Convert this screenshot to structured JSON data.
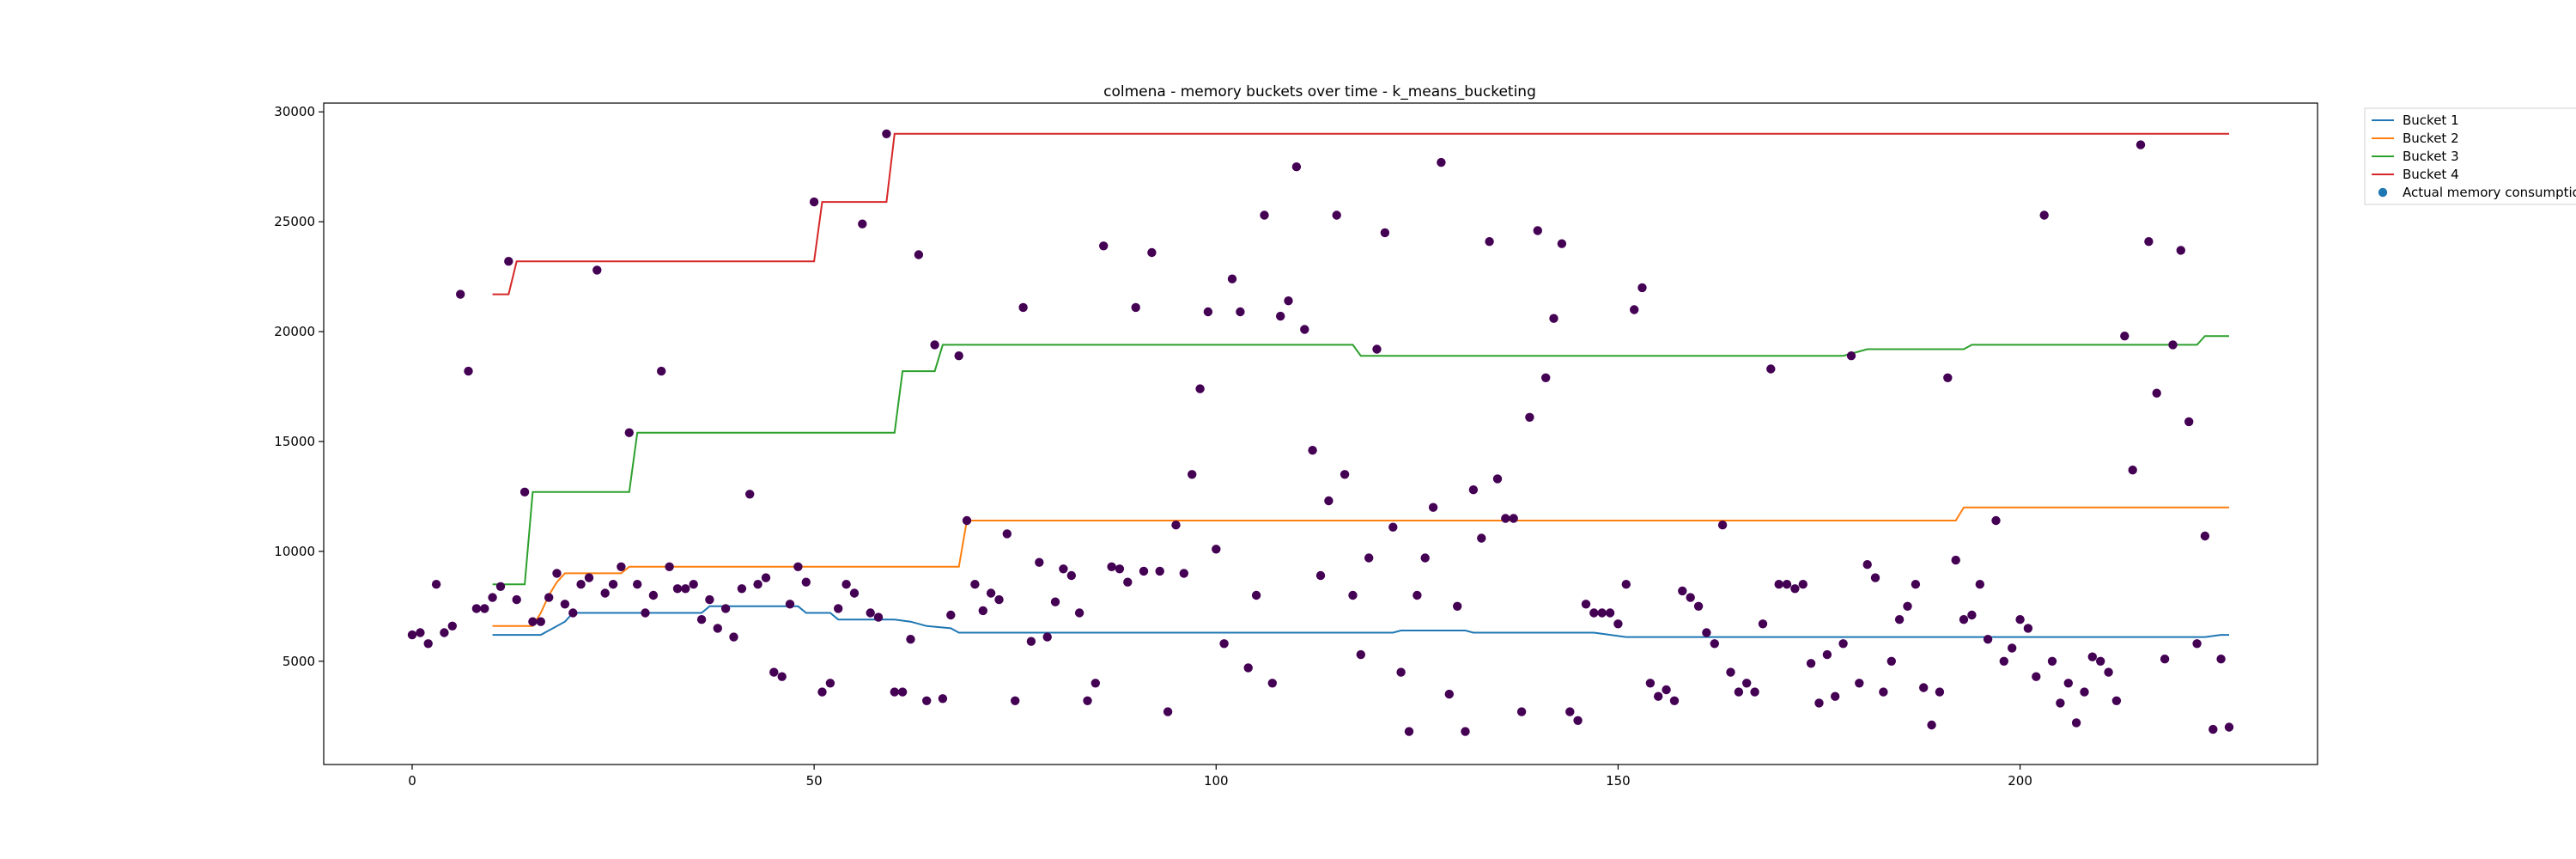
{
  "chart_data": {
    "type": "line",
    "title": "colmena - memory buckets over time - k_means_bucketing",
    "xlabel": "",
    "ylabel": "",
    "xlim": [
      -11,
      237
    ],
    "ylim": [
      300,
      30400
    ],
    "xticks": [
      0,
      50,
      100,
      150,
      200
    ],
    "yticks": [
      5000,
      10000,
      15000,
      20000,
      25000,
      30000
    ],
    "grid": false,
    "legend_position": "outside-top-right",
    "series": [
      {
        "name": "Bucket 1",
        "color": "#1f77b4",
        "points": [
          [
            10,
            6200
          ],
          [
            16,
            6200
          ],
          [
            19,
            6800
          ],
          [
            20,
            7200
          ],
          [
            36,
            7200
          ],
          [
            37,
            7500
          ],
          [
            48,
            7500
          ],
          [
            49,
            7200
          ],
          [
            52,
            7200
          ],
          [
            53,
            6900
          ],
          [
            60,
            6900
          ],
          [
            62,
            6800
          ],
          [
            64,
            6600
          ],
          [
            67,
            6500
          ],
          [
            68,
            6300
          ],
          [
            122,
            6300
          ],
          [
            123,
            6400
          ],
          [
            131,
            6400
          ],
          [
            132,
            6300
          ],
          [
            147,
            6300
          ],
          [
            151,
            6100
          ],
          [
            223,
            6100
          ],
          [
            225,
            6200
          ],
          [
            226,
            6200
          ]
        ]
      },
      {
        "name": "Bucket 2",
        "color": "#ff7f0e",
        "points": [
          [
            10,
            6600
          ],
          [
            15,
            6600
          ],
          [
            16,
            7200
          ],
          [
            17,
            8000
          ],
          [
            18,
            8600
          ],
          [
            19,
            9000
          ],
          [
            26,
            9000
          ],
          [
            27,
            9300
          ],
          [
            68,
            9300
          ],
          [
            69,
            11400
          ],
          [
            192,
            11400
          ],
          [
            193,
            12000
          ],
          [
            226,
            12000
          ]
        ]
      },
      {
        "name": "Bucket 3",
        "color": "#2ca02c",
        "points": [
          [
            10,
            8500
          ],
          [
            14,
            8500
          ],
          [
            15,
            12700
          ],
          [
            27,
            12700
          ],
          [
            28,
            15400
          ],
          [
            60,
            15400
          ],
          [
            61,
            18200
          ],
          [
            65,
            18200
          ],
          [
            66,
            19400
          ],
          [
            117,
            19400
          ],
          [
            118,
            18900
          ],
          [
            178,
            18900
          ],
          [
            181,
            19200
          ],
          [
            193,
            19200
          ],
          [
            194,
            19400
          ],
          [
            222,
            19400
          ],
          [
            223,
            19800
          ],
          [
            226,
            19800
          ]
        ]
      },
      {
        "name": "Bucket 4",
        "color": "#d62728",
        "points": [
          [
            10,
            21700
          ],
          [
            12,
            21700
          ],
          [
            13,
            23200
          ],
          [
            50,
            23200
          ],
          [
            51,
            25900
          ],
          [
            59,
            25900
          ],
          [
            60,
            29000
          ],
          [
            226,
            29000
          ]
        ]
      }
    ],
    "scatter": {
      "name": "Actual memory consumption",
      "legend_color": "#1f77b4",
      "point_color": "#440154",
      "points": [
        [
          0,
          6200
        ],
        [
          1,
          6300
        ],
        [
          2,
          5800
        ],
        [
          3,
          8500
        ],
        [
          4,
          6300
        ],
        [
          5,
          6600
        ],
        [
          6,
          21700
        ],
        [
          7,
          18200
        ],
        [
          8,
          7400
        ],
        [
          9,
          7400
        ],
        [
          10,
          7900
        ],
        [
          11,
          8400
        ],
        [
          12,
          23200
        ],
        [
          13,
          7800
        ],
        [
          14,
          12700
        ],
        [
          15,
          6800
        ],
        [
          16,
          6800
        ],
        [
          17,
          7900
        ],
        [
          18,
          9000
        ],
        [
          19,
          7600
        ],
        [
          20,
          7200
        ],
        [
          21,
          8500
        ],
        [
          22,
          8800
        ],
        [
          23,
          22800
        ],
        [
          24,
          8100
        ],
        [
          25,
          8500
        ],
        [
          26,
          9300
        ],
        [
          27,
          15400
        ],
        [
          28,
          8500
        ],
        [
          29,
          7200
        ],
        [
          30,
          8000
        ],
        [
          31,
          18200
        ],
        [
          32,
          9300
        ],
        [
          33,
          8300
        ],
        [
          34,
          8300
        ],
        [
          35,
          8500
        ],
        [
          36,
          6900
        ],
        [
          37,
          7800
        ],
        [
          38,
          6500
        ],
        [
          39,
          7400
        ],
        [
          40,
          6100
        ],
        [
          41,
          8300
        ],
        [
          42,
          12600
        ],
        [
          43,
          8500
        ],
        [
          44,
          8800
        ],
        [
          45,
          4500
        ],
        [
          46,
          4300
        ],
        [
          47,
          7600
        ],
        [
          48,
          9300
        ],
        [
          49,
          8600
        ],
        [
          50,
          25900
        ],
        [
          51,
          3600
        ],
        [
          52,
          4000
        ],
        [
          53,
          7400
        ],
        [
          54,
          8500
        ],
        [
          55,
          8100
        ],
        [
          56,
          24900
        ],
        [
          57,
          7200
        ],
        [
          58,
          7000
        ],
        [
          59,
          29000
        ],
        [
          60,
          3600
        ],
        [
          61,
          3600
        ],
        [
          62,
          6000
        ],
        [
          63,
          23500
        ],
        [
          64,
          3200
        ],
        [
          65,
          19400
        ],
        [
          66,
          3300
        ],
        [
          67,
          7100
        ],
        [
          68,
          18900
        ],
        [
          69,
          11400
        ],
        [
          70,
          8500
        ],
        [
          71,
          7300
        ],
        [
          72,
          8100
        ],
        [
          73,
          7800
        ],
        [
          74,
          10800
        ],
        [
          75,
          3200
        ],
        [
          76,
          21100
        ],
        [
          77,
          5900
        ],
        [
          78,
          9500
        ],
        [
          79,
          6100
        ],
        [
          80,
          7700
        ],
        [
          81,
          9200
        ],
        [
          82,
          8900
        ],
        [
          83,
          7200
        ],
        [
          84,
          3200
        ],
        [
          85,
          4000
        ],
        [
          86,
          23900
        ],
        [
          87,
          9300
        ],
        [
          88,
          9200
        ],
        [
          89,
          8600
        ],
        [
          90,
          21100
        ],
        [
          91,
          9100
        ],
        [
          92,
          23600
        ],
        [
          93,
          9100
        ],
        [
          94,
          2700
        ],
        [
          95,
          11200
        ],
        [
          96,
          9000
        ],
        [
          97,
          13500
        ],
        [
          98,
          17400
        ],
        [
          99,
          20900
        ],
        [
          100,
          10100
        ],
        [
          101,
          5800
        ],
        [
          102,
          22400
        ],
        [
          103,
          20900
        ],
        [
          104,
          4700
        ],
        [
          105,
          8000
        ],
        [
          106,
          25300
        ],
        [
          107,
          4000
        ],
        [
          108,
          20700
        ],
        [
          109,
          21400
        ],
        [
          110,
          27500
        ],
        [
          111,
          20100
        ],
        [
          112,
          14600
        ],
        [
          113,
          8900
        ],
        [
          114,
          12300
        ],
        [
          115,
          25300
        ],
        [
          116,
          13500
        ],
        [
          117,
          8000
        ],
        [
          118,
          5300
        ],
        [
          119,
          9700
        ],
        [
          120,
          19200
        ],
        [
          121,
          24500
        ],
        [
          122,
          11100
        ],
        [
          123,
          4500
        ],
        [
          124,
          1800
        ],
        [
          125,
          8000
        ],
        [
          126,
          9700
        ],
        [
          127,
          12000
        ],
        [
          128,
          27700
        ],
        [
          129,
          3500
        ],
        [
          130,
          7500
        ],
        [
          131,
          1800
        ],
        [
          132,
          12800
        ],
        [
          133,
          10600
        ],
        [
          134,
          24100
        ],
        [
          135,
          13300
        ],
        [
          136,
          11500
        ],
        [
          137,
          11500
        ],
        [
          138,
          2700
        ],
        [
          139,
          16100
        ],
        [
          140,
          24600
        ],
        [
          141,
          17900
        ],
        [
          142,
          20600
        ],
        [
          143,
          24000
        ],
        [
          144,
          2700
        ],
        [
          145,
          2300
        ],
        [
          146,
          7600
        ],
        [
          147,
          7200
        ],
        [
          148,
          7200
        ],
        [
          149,
          7200
        ],
        [
          150,
          6700
        ],
        [
          151,
          8500
        ],
        [
          152,
          21000
        ],
        [
          153,
          22000
        ],
        [
          154,
          4000
        ],
        [
          155,
          3400
        ],
        [
          156,
          3700
        ],
        [
          157,
          3200
        ],
        [
          158,
          8200
        ],
        [
          159,
          7900
        ],
        [
          160,
          7500
        ],
        [
          161,
          6300
        ],
        [
          162,
          5800
        ],
        [
          163,
          11200
        ],
        [
          164,
          4500
        ],
        [
          165,
          3600
        ],
        [
          166,
          4000
        ],
        [
          167,
          3600
        ],
        [
          168,
          6700
        ],
        [
          169,
          18300
        ],
        [
          170,
          8500
        ],
        [
          171,
          8500
        ],
        [
          172,
          8300
        ],
        [
          173,
          8500
        ],
        [
          174,
          4900
        ],
        [
          175,
          3100
        ],
        [
          176,
          5300
        ],
        [
          177,
          3400
        ],
        [
          178,
          5800
        ],
        [
          179,
          18900
        ],
        [
          180,
          4000
        ],
        [
          181,
          9400
        ],
        [
          182,
          8800
        ],
        [
          183,
          3600
        ],
        [
          184,
          5000
        ],
        [
          185,
          6900
        ],
        [
          186,
          7500
        ],
        [
          187,
          8500
        ],
        [
          188,
          3800
        ],
        [
          189,
          2100
        ],
        [
          190,
          3600
        ],
        [
          191,
          17900
        ],
        [
          192,
          9600
        ],
        [
          193,
          6900
        ],
        [
          194,
          7100
        ],
        [
          195,
          8500
        ],
        [
          196,
          6000
        ],
        [
          197,
          11400
        ],
        [
          198,
          5000
        ],
        [
          199,
          5600
        ],
        [
          200,
          6900
        ],
        [
          201,
          6500
        ],
        [
          202,
          4300
        ],
        [
          203,
          25300
        ],
        [
          204,
          5000
        ],
        [
          205,
          3100
        ],
        [
          206,
          4000
        ],
        [
          207,
          2200
        ],
        [
          208,
          3600
        ],
        [
          209,
          5200
        ],
        [
          210,
          5000
        ],
        [
          211,
          4500
        ],
        [
          212,
          3200
        ],
        [
          213,
          19800
        ],
        [
          214,
          13700
        ],
        [
          215,
          28500
        ],
        [
          216,
          24100
        ],
        [
          217,
          17200
        ],
        [
          218,
          5100
        ],
        [
          219,
          19400
        ],
        [
          220,
          23700
        ],
        [
          221,
          15900
        ],
        [
          222,
          5800
        ],
        [
          223,
          10700
        ],
        [
          224,
          1900
        ],
        [
          225,
          5100
        ],
        [
          226,
          2000
        ]
      ]
    }
  }
}
